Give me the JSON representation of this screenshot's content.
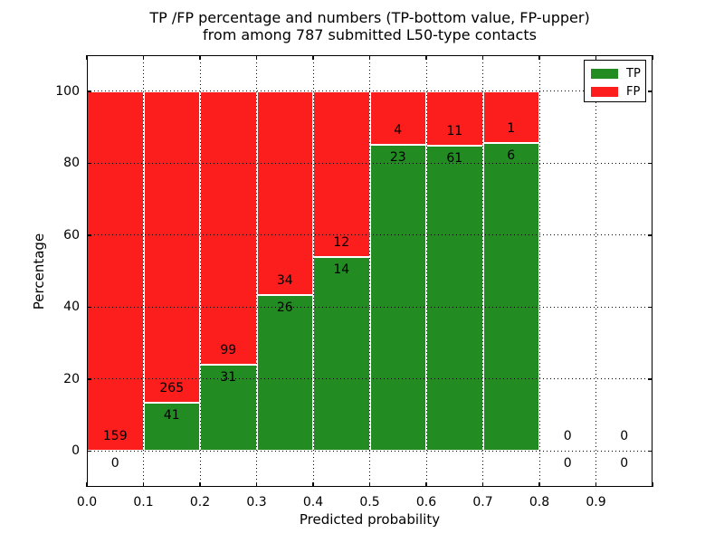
{
  "title": {
    "line1": "TP /FP percentage and numbers (TP-bottom value, FP-upper)",
    "line2": "from among 787 submitted L50-type contacts"
  },
  "axes": {
    "xlabel": "Predicted probability",
    "ylabel": "Percentage"
  },
  "chart_data": {
    "type": "bar",
    "variant": "stacked-percentage",
    "title": "TP /FP percentage and numbers (TP-bottom value, FP-upper) from among 787 submitted L50-type contacts",
    "xlabel": "Predicted probability",
    "ylabel": "Percentage",
    "total_contacts": 787,
    "bin_width": 0.1,
    "bin_starts": [
      0.0,
      0.1,
      0.2,
      0.3,
      0.4,
      0.5,
      0.6,
      0.7,
      0.8,
      0.9
    ],
    "x_tick_labels": [
      "0.0",
      "0.1",
      "0.2",
      "0.3",
      "0.4",
      "0.5",
      "0.6",
      "0.7",
      "0.8",
      "0.9"
    ],
    "y_ticks": [
      0,
      20,
      40,
      60,
      80,
      100
    ],
    "xlim": [
      0.0,
      1.0
    ],
    "ylim": [
      -10,
      110
    ],
    "grid": "dotted",
    "series": [
      {
        "name": "TP",
        "color": "#228b22",
        "counts": [
          0,
          41,
          31,
          26,
          14,
          23,
          61,
          6,
          0,
          0
        ]
      },
      {
        "name": "FP",
        "color": "#fc1d1d",
        "counts": [
          159,
          265,
          99,
          34,
          12,
          4,
          11,
          1,
          0,
          0
        ]
      }
    ],
    "tp_percent_by_bin": [
      0.0,
      13.4,
      23.85,
      43.33,
      53.85,
      85.19,
      84.72,
      85.71,
      0,
      0
    ],
    "legend": {
      "position": "upper-right",
      "entries": [
        {
          "label": "TP",
          "color": "#228b22"
        },
        {
          "label": "FP",
          "color": "#fc1d1d"
        }
      ]
    }
  }
}
